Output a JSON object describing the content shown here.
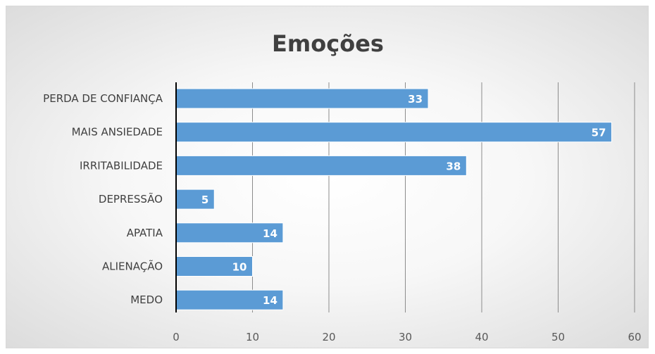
{
  "chart_data": {
    "type": "bar",
    "orientation": "horizontal",
    "title": "Emoções",
    "categories": [
      "PERDA DE CONFIANÇA",
      "MAIS ANSIEDADE",
      "IRRITABILIDADE",
      "DEPRESSÃO",
      "APATIA",
      "ALIENAÇÃO",
      "MEDO"
    ],
    "values": [
      33,
      57,
      38,
      5,
      14,
      10,
      14
    ],
    "data_labels": [
      "33",
      "57",
      "38",
      "5",
      "14",
      "10",
      "14"
    ],
    "xlim": [
      0,
      60
    ],
    "x_ticks": [
      0,
      10,
      20,
      30,
      40,
      50,
      60
    ],
    "x_tick_labels": [
      "0",
      "10",
      "20",
      "30",
      "40",
      "50",
      "60"
    ],
    "xlabel": "",
    "ylabel": "",
    "grid": "vertical",
    "legend": "none",
    "colors": {
      "bar": "#5b9bd5",
      "bar_edge": "#ffffff",
      "gridline": "#8c8c8c",
      "axis": "#000000"
    }
  }
}
